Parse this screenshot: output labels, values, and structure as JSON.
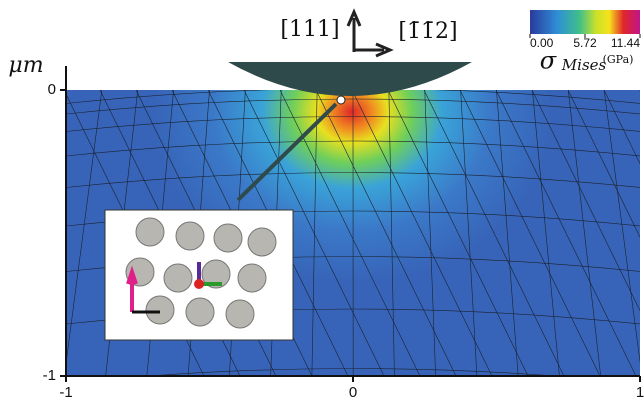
{
  "chart_data": {
    "type": "contour",
    "x_unit": "μm",
    "direction_labels": [
      "[111]",
      "[1̄1̄2]"
    ],
    "xlim": [
      -1,
      1
    ],
    "xticks": [
      -1,
      0,
      1
    ],
    "ylim": [
      -1,
      0
    ],
    "yticks": [
      0,
      -1
    ],
    "clim": [
      0,
      11.44
    ],
    "cticks": [
      {
        "value": 0,
        "label": "0.00"
      },
      5.72,
      11.44
    ],
    "colorbar_label": "σ",
    "colorbar_label_sub": "Mises",
    "colorbar_unit": "(GPa)"
  }
}
